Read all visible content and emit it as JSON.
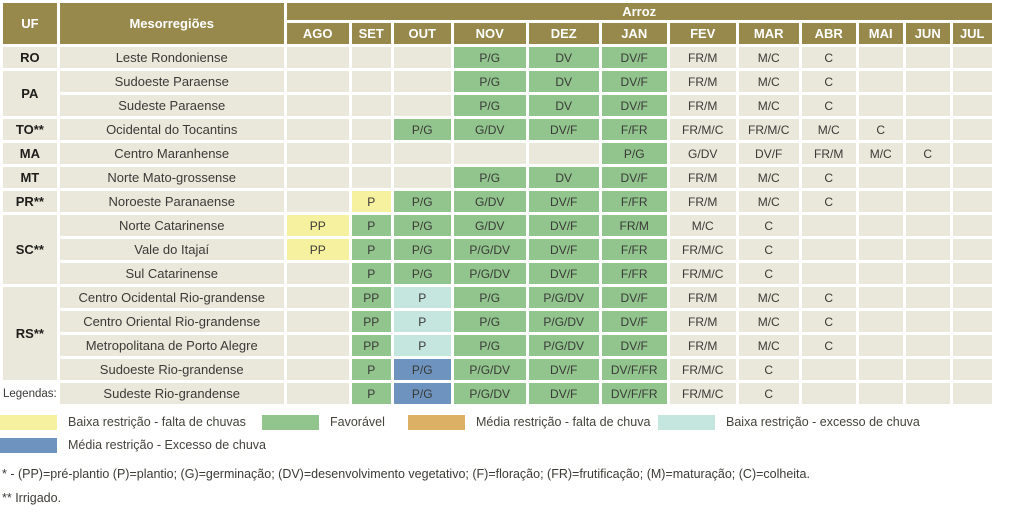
{
  "table": {
    "uf_header": "UF",
    "meso_header": "Mesorregiões",
    "crop_header": "Arroz",
    "months": [
      "AGO",
      "SET",
      "OUT",
      "NOV",
      "DEZ",
      "JAN",
      "FEV",
      "MAR",
      "ABR",
      "MAI",
      "JUN",
      "JUL"
    ],
    "stage_colors": {
      "green": "#92c48d",
      "yellow": "#f6f19e",
      "cyan": "#c5e6de",
      "blue": "#6d93be"
    },
    "rows": [
      {
        "uf": "RO",
        "uf_rowspan": 1,
        "meso": "Leste Rondoniense",
        "values": [
          "",
          "",
          "",
          "P/G",
          "DV",
          "DV/F",
          "FR/M",
          "M/C",
          "C",
          "",
          "",
          ""
        ],
        "colors": [
          "",
          "",
          "",
          "green",
          "green",
          "green",
          "",
          "",
          "",
          "",
          "",
          ""
        ]
      },
      {
        "uf": "PA",
        "uf_rowspan": 2,
        "meso": "Sudoeste Paraense",
        "values": [
          "",
          "",
          "",
          "P/G",
          "DV",
          "DV/F",
          "FR/M",
          "M/C",
          "C",
          "",
          "",
          ""
        ],
        "colors": [
          "",
          "",
          "",
          "green",
          "green",
          "green",
          "",
          "",
          "",
          "",
          "",
          ""
        ]
      },
      {
        "uf": null,
        "meso": "Sudeste Paraense",
        "values": [
          "",
          "",
          "",
          "P/G",
          "DV",
          "DV/F",
          "FR/M",
          "M/C",
          "C",
          "",
          "",
          ""
        ],
        "colors": [
          "",
          "",
          "",
          "green",
          "green",
          "green",
          "",
          "",
          "",
          "",
          "",
          ""
        ]
      },
      {
        "uf": "TO**",
        "uf_rowspan": 1,
        "meso": "Ocidental do Tocantins",
        "values": [
          "",
          "",
          "P/G",
          "G/DV",
          "DV/F",
          "F/FR",
          "FR/M/C",
          "FR/M/C",
          "M/C",
          "C",
          "",
          ""
        ],
        "colors": [
          "",
          "",
          "green",
          "green",
          "green",
          "green",
          "",
          "",
          "",
          "",
          "",
          ""
        ]
      },
      {
        "uf": "MA",
        "uf_rowspan": 1,
        "meso": "Centro Maranhense",
        "values": [
          "",
          "",
          "",
          "",
          "",
          "P/G",
          "G/DV",
          "DV/F",
          "FR/M",
          "M/C",
          "C",
          ""
        ],
        "colors": [
          "",
          "",
          "",
          "",
          "",
          "green",
          "",
          "",
          "",
          "",
          "",
          ""
        ]
      },
      {
        "uf": "MT",
        "uf_rowspan": 1,
        "meso": "Norte Mato-grossense",
        "values": [
          "",
          "",
          "",
          "P/G",
          "DV",
          "DV/F",
          "FR/M",
          "M/C",
          "C",
          "",
          "",
          ""
        ],
        "colors": [
          "",
          "",
          "",
          "green",
          "green",
          "green",
          "",
          "",
          "",
          "",
          "",
          ""
        ]
      },
      {
        "uf": "PR**",
        "uf_rowspan": 1,
        "meso": "Noroeste Paranaense",
        "values": [
          "",
          "P",
          "P/G",
          "G/DV",
          "DV/F",
          "F/FR",
          "FR/M",
          "M/C",
          "C",
          "",
          "",
          ""
        ],
        "colors": [
          "",
          "yellow",
          "green",
          "green",
          "green",
          "green",
          "",
          "",
          "",
          "",
          "",
          ""
        ]
      },
      {
        "uf": "SC**",
        "uf_rowspan": 3,
        "meso": "Norte Catarinense",
        "values": [
          "PP",
          "P",
          "P/G",
          "G/DV",
          "DV/F",
          "FR/M",
          "M/C",
          "C",
          "",
          "",
          "",
          ""
        ],
        "colors": [
          "yellow",
          "green",
          "green",
          "green",
          "green",
          "green",
          "",
          "",
          "",
          "",
          "",
          ""
        ]
      },
      {
        "uf": null,
        "meso": "Vale do Itajaí",
        "values": [
          "PP",
          "P",
          "P/G",
          "P/G/DV",
          "DV/F",
          "F/FR",
          "FR/M/C",
          "C",
          "",
          "",
          "",
          ""
        ],
        "colors": [
          "yellow",
          "green",
          "green",
          "green",
          "green",
          "green",
          "",
          "",
          "",
          "",
          "",
          ""
        ]
      },
      {
        "uf": null,
        "meso": "Sul Catarinense",
        "values": [
          "",
          "P",
          "P/G",
          "P/G/DV",
          "DV/F",
          "F/FR",
          "FR/M/C",
          "C",
          "",
          "",
          "",
          ""
        ],
        "colors": [
          "",
          "green",
          "green",
          "green",
          "green",
          "green",
          "",
          "",
          "",
          "",
          "",
          ""
        ]
      },
      {
        "uf": "RS**",
        "uf_rowspan": 4,
        "meso": "Centro Ocidental Rio-grandense",
        "values": [
          "",
          "PP",
          "P",
          "P/G",
          "P/G/DV",
          "DV/F",
          "FR/M",
          "M/C",
          "C",
          "",
          "",
          ""
        ],
        "colors": [
          "",
          "green",
          "cyan",
          "green",
          "green",
          "green",
          "",
          "",
          "",
          "",
          "",
          ""
        ]
      },
      {
        "uf": null,
        "meso": "Centro Oriental Rio-grandense",
        "values": [
          "",
          "PP",
          "P",
          "P/G",
          "P/G/DV",
          "DV/F",
          "FR/M",
          "M/C",
          "C",
          "",
          "",
          ""
        ],
        "colors": [
          "",
          "green",
          "cyan",
          "green",
          "green",
          "green",
          "",
          "",
          "",
          "",
          "",
          ""
        ]
      },
      {
        "uf": null,
        "meso": "Metropolitana de Porto Alegre",
        "values": [
          "",
          "PP",
          "P",
          "P/G",
          "P/G/DV",
          "DV/F",
          "FR/M",
          "M/C",
          "C",
          "",
          "",
          ""
        ],
        "colors": [
          "",
          "green",
          "cyan",
          "green",
          "green",
          "green",
          "",
          "",
          "",
          "",
          "",
          ""
        ]
      },
      {
        "uf": null,
        "meso": "Sudoeste Rio-grandense",
        "values": [
          "",
          "P",
          "P/G",
          "P/G/DV",
          "DV/F",
          "DV/F/FR",
          "FR/M/C",
          "C",
          "",
          "",
          "",
          ""
        ],
        "colors": [
          "",
          "green",
          "blue",
          "green",
          "green",
          "green",
          "",
          "",
          "",
          "",
          "",
          ""
        ]
      },
      {
        "uf": null,
        "legend_label": "Legendas:",
        "meso": "Sudeste Rio-grandense",
        "values": [
          "",
          "P",
          "P/G",
          "P/G/DV",
          "DV/F",
          "DV/F/FR",
          "FR/M/C",
          "C",
          "",
          "",
          "",
          ""
        ],
        "colors": [
          "",
          "green",
          "blue",
          "green",
          "green",
          "green",
          "",
          "",
          "",
          "",
          "",
          ""
        ]
      }
    ]
  },
  "legend": {
    "items": [
      {
        "name": "low-restriction-lack-of-rain",
        "label": "Baixa restrição - falta de chuvas",
        "color": "#f6f19e",
        "row": 1
      },
      {
        "name": "favorable",
        "label": "Favorável",
        "color": "#92c48d",
        "row": 1
      },
      {
        "name": "medium-restriction-lack-of-rain",
        "label": "Média restrição - falta de chuva",
        "color": "#dcb065",
        "row": 1
      },
      {
        "name": "low-restriction-excess-rain",
        "label": "Baixa restrição - excesso de chuva",
        "color": "#c5e6de",
        "row": 1
      },
      {
        "name": "medium-restriction-excess-rain",
        "label": "Média restrição - Excesso de chuva",
        "color": "#6d93be",
        "row": 2
      }
    ]
  },
  "footnotes": {
    "stages": "* - (PP)=pré-plantio (P)=plantio; (G)=germinação; (DV)=desenvolvimento vegetativo; (F)=floração; (FR)=frutificação; (M)=maturação; (C)=colheita.",
    "irrigated": "** Irrigado."
  }
}
